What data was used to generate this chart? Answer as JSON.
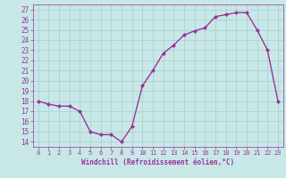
{
  "x": [
    0,
    1,
    2,
    3,
    4,
    5,
    6,
    7,
    8,
    9,
    10,
    11,
    12,
    13,
    14,
    15,
    16,
    17,
    18,
    19,
    20,
    21,
    22,
    23
  ],
  "y": [
    18.0,
    17.7,
    17.5,
    17.5,
    17.0,
    15.0,
    14.7,
    14.7,
    14.0,
    15.5,
    19.5,
    21.0,
    22.7,
    23.5,
    24.5,
    24.9,
    25.2,
    26.3,
    26.5,
    26.7,
    26.7,
    25.0,
    23.0,
    18.0
  ],
  "xlim": [
    -0.5,
    23.5
  ],
  "ylim": [
    13.5,
    27.5
  ],
  "yticks": [
    14,
    15,
    16,
    17,
    18,
    19,
    20,
    21,
    22,
    23,
    24,
    25,
    26,
    27
  ],
  "xticks": [
    0,
    1,
    2,
    3,
    4,
    5,
    6,
    7,
    8,
    9,
    10,
    11,
    12,
    13,
    14,
    15,
    16,
    17,
    18,
    19,
    20,
    21,
    22,
    23
  ],
  "xlabel": "Windchill (Refroidissement éolien,°C)",
  "line_color": "#993399",
  "marker_color": "#993399",
  "bg_color": "#c8e8e8",
  "grid_color": "#aacccc",
  "tick_color": "#993399",
  "xlabel_color": "#993399",
  "marker": "D",
  "marker_size": 2,
  "line_width": 1.0
}
